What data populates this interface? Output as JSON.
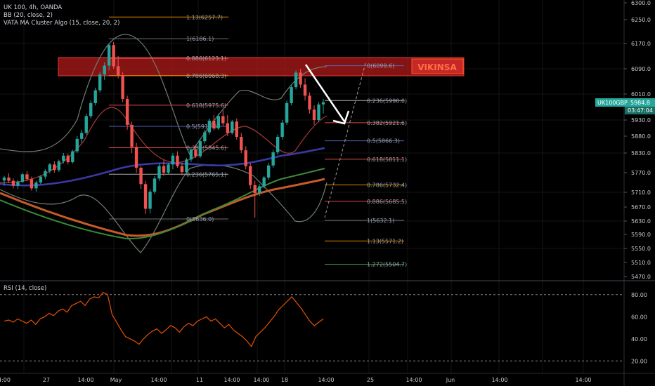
{
  "header": {
    "symbol_line": "UK 100, 4h, OANDA",
    "indicator_bb": "BB (20, close, 2)",
    "indicator_vata": "VATA MA Cluster Algo (15, close, 20, 2)",
    "rsi_label": "RSI (14, close)"
  },
  "price_tag": {
    "label": "UK100GBP",
    "value": "5984.8",
    "countdown": "03:47:04",
    "color": "#26a69a"
  },
  "watermark": "VIKINSA",
  "colors": {
    "up": "#26a69a",
    "down": "#ef5350",
    "resistance_zone": "#b71c1c",
    "rsi": "#e65100",
    "ma_blue": "#3a3aa8",
    "ma_orange": "#c55a2a",
    "ma_green": "#3a8a3a",
    "bb": "#7a8a7a"
  },
  "chart_data": {
    "type": "candlestick",
    "price_axis": {
      "ticks": [
        6300,
        6250,
        6170,
        6090,
        6010,
        5930,
        5880,
        5830,
        5770,
        5710,
        5670,
        5630,
        5590,
        5550,
        5510,
        5470
      ],
      "labels": [
        "6300.0",
        "6250.0",
        "6170.0",
        "6090.0",
        "6010.0",
        "5930.0",
        "5880.0",
        "5830.0",
        "5770.0",
        "5710.0",
        "5670.0",
        "5630.0",
        "5590.0",
        "5550.0",
        "5510.0",
        "5470.0"
      ]
    },
    "time_axis": {
      "labels": [
        "4:00",
        "27",
        "14:00",
        "May",
        "14:00",
        "11",
        "14:00",
        "14:00",
        "18",
        "14:00",
        "25",
        "14:00",
        "Jun",
        "14:00",
        "14:00"
      ]
    },
    "fib_left": [
      {
        "level": "1.13",
        "price": "6257.7",
        "color": "#ff9800"
      },
      {
        "level": "1",
        "price": "6186.1",
        "color": "#787b86"
      },
      {
        "level": "0.886",
        "price": "6123.1",
        "color": "#ef5350"
      },
      {
        "level": "0.786",
        "price": "6068.3",
        "color": "#ff9800"
      },
      {
        "level": "0.618",
        "price": "5975.6",
        "color": "#ef5350"
      },
      {
        "level": "0.5",
        "price": "5910.5",
        "color": "#5c6bc0"
      },
      {
        "level": "0.382",
        "price": "5845.6",
        "color": "#ef5350"
      },
      {
        "level": "0.236",
        "price": "5765.1",
        "color": "#c0c0c0"
      },
      {
        "level": "0",
        "price": "5636.0",
        "color": "#787b86"
      }
    ],
    "fib_right": [
      {
        "level": "0",
        "price": "6099.6",
        "color": "#5c6bc0"
      },
      {
        "level": "0.236",
        "price": "5990.0",
        "color": "#c0c0c0"
      },
      {
        "level": "0.382",
        "price": "5921.6",
        "color": "#ef5350"
      },
      {
        "level": "0.5",
        "price": "5866.3",
        "color": "#5c6bc0"
      },
      {
        "level": "0.618",
        "price": "5811.1",
        "color": "#ef5350"
      },
      {
        "level": "0.786",
        "price": "5732.4",
        "color": "#ff9800"
      },
      {
        "level": "0.886",
        "price": "5685.5",
        "color": "#ef5350"
      },
      {
        "level": "1",
        "price": "5632.1",
        "color": "#787b86"
      },
      {
        "level": "1.13",
        "price": "5571.2",
        "color": "#ff9800"
      },
      {
        "level": "1.272",
        "price": "5504.7",
        "color": "#4caf50"
      }
    ],
    "candles": [
      [
        5746,
        5760,
        5730,
        5755
      ],
      [
        5755,
        5768,
        5738,
        5745
      ],
      [
        5745,
        5752,
        5722,
        5730
      ],
      [
        5730,
        5748,
        5720,
        5742
      ],
      [
        5742,
        5770,
        5738,
        5765
      ],
      [
        5765,
        5775,
        5745,
        5750
      ],
      [
        5750,
        5758,
        5715,
        5722
      ],
      [
        5722,
        5745,
        5712,
        5740
      ],
      [
        5740,
        5762,
        5735,
        5758
      ],
      [
        5758,
        5780,
        5750,
        5775
      ],
      [
        5775,
        5800,
        5768,
        5795
      ],
      [
        5795,
        5805,
        5770,
        5778
      ],
      [
        5778,
        5810,
        5772,
        5805
      ],
      [
        5805,
        5830,
        5798,
        5822
      ],
      [
        5822,
        5828,
        5795,
        5802
      ],
      [
        5802,
        5840,
        5798,
        5835
      ],
      [
        5835,
        5880,
        5830,
        5872
      ],
      [
        5872,
        5900,
        5860,
        5890
      ],
      [
        5890,
        5950,
        5885,
        5942
      ],
      [
        5942,
        5990,
        5935,
        5982
      ],
      [
        5982,
        6030,
        5975,
        6022
      ],
      [
        6022,
        6080,
        6015,
        6072
      ],
      [
        6072,
        6110,
        6055,
        6100
      ],
      [
        6100,
        6170,
        6085,
        6165
      ],
      [
        6165,
        6175,
        6090,
        6098
      ],
      [
        6098,
        6130,
        6060,
        6070
      ],
      [
        6070,
        6080,
        5985,
        5995
      ],
      [
        5995,
        6005,
        5900,
        5915
      ],
      [
        5915,
        5925,
        5830,
        5848
      ],
      [
        5848,
        5860,
        5770,
        5785
      ],
      [
        5785,
        5790,
        5720,
        5735
      ],
      [
        5735,
        5745,
        5650,
        5665
      ],
      [
        5665,
        5720,
        5652,
        5712
      ],
      [
        5712,
        5760,
        5705,
        5752
      ],
      [
        5752,
        5798,
        5745,
        5790
      ],
      [
        5790,
        5810,
        5760,
        5770
      ],
      [
        5770,
        5800,
        5765,
        5795
      ],
      [
        5795,
        5830,
        5780,
        5822
      ],
      [
        5822,
        5835,
        5785,
        5790
      ],
      [
        5790,
        5800,
        5762,
        5772
      ],
      [
        5772,
        5815,
        5768,
        5810
      ],
      [
        5810,
        5848,
        5802,
        5840
      ],
      [
        5840,
        5855,
        5815,
        5820
      ],
      [
        5820,
        5870,
        5815,
        5865
      ],
      [
        5865,
        5900,
        5858,
        5892
      ],
      [
        5892,
        5935,
        5885,
        5928
      ],
      [
        5928,
        5945,
        5898,
        5905
      ],
      [
        5905,
        5950,
        5900,
        5942
      ],
      [
        5942,
        5960,
        5912,
        5920
      ],
      [
        5920,
        5945,
        5880,
        5890
      ],
      [
        5890,
        5930,
        5885,
        5925
      ],
      [
        5925,
        5935,
        5870,
        5878
      ],
      [
        5878,
        5890,
        5830,
        5838
      ],
      [
        5838,
        5850,
        5780,
        5790
      ],
      [
        5790,
        5800,
        5720,
        5732
      ],
      [
        5732,
        5745,
        5640,
        5708
      ],
      [
        5708,
        5735,
        5700,
        5728
      ],
      [
        5728,
        5760,
        5722,
        5755
      ],
      [
        5755,
        5800,
        5748,
        5792
      ],
      [
        5792,
        5840,
        5785,
        5832
      ],
      [
        5832,
        5885,
        5825,
        5878
      ],
      [
        5878,
        5930,
        5870,
        5922
      ],
      [
        5922,
        5990,
        5915,
        5982
      ],
      [
        5982,
        6040,
        5975,
        6032
      ],
      [
        6032,
        6085,
        6025,
        6078
      ],
      [
        6078,
        6090,
        6030,
        6040
      ],
      [
        6040,
        6060,
        5990,
        6005
      ],
      [
        6005,
        6015,
        5950,
        5962
      ],
      [
        5962,
        5975,
        5915,
        5930
      ],
      [
        5930,
        5985,
        5925,
        5978
      ],
      [
        5978,
        5995,
        5950,
        5985
      ]
    ]
  }
}
